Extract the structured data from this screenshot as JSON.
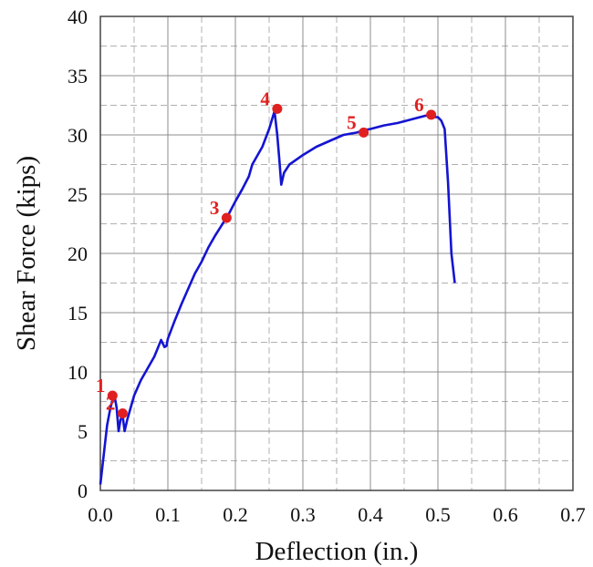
{
  "chart_data": {
    "type": "line",
    "xlabel": "Deflection  (in.)",
    "ylabel": "Shear Force  (kips)",
    "xlim": [
      0,
      0.7
    ],
    "ylim": [
      0,
      40
    ],
    "x_ticks": [
      0.0,
      0.1,
      0.2,
      0.3,
      0.4,
      0.5,
      0.6,
      0.7
    ],
    "x_tick_labels": [
      "0.0",
      "0.1",
      "0.2",
      "0.3",
      "0.4",
      "0.5",
      "0.6",
      "0.7"
    ],
    "y_ticks": [
      0,
      5,
      10,
      15,
      20,
      25,
      30,
      35,
      40
    ],
    "y_tick_labels": [
      "0",
      "5",
      "10",
      "15",
      "20",
      "25",
      "30",
      "35",
      "40"
    ],
    "grid": {
      "major": true,
      "minor": true
    },
    "line_color": "#1414d2",
    "marker_color": "#e02020",
    "series": [
      {
        "x": [
          0.0,
          0.002,
          0.005,
          0.01,
          0.015,
          0.018,
          0.021,
          0.024,
          0.027,
          0.03,
          0.033,
          0.036,
          0.04,
          0.045,
          0.05,
          0.06,
          0.07,
          0.08,
          0.09,
          0.095,
          0.098,
          0.1,
          0.11,
          0.12,
          0.13,
          0.14,
          0.15,
          0.16,
          0.17,
          0.18,
          0.19,
          0.2,
          0.21,
          0.22,
          0.225,
          0.23,
          0.24,
          0.25,
          0.258,
          0.262,
          0.265,
          0.268,
          0.272,
          0.28,
          0.3,
          0.32,
          0.34,
          0.36,
          0.38,
          0.39,
          0.4,
          0.42,
          0.44,
          0.46,
          0.48,
          0.49,
          0.495,
          0.5,
          0.505,
          0.51,
          0.515,
          0.52,
          0.525
        ],
        "y": [
          0.5,
          1.5,
          3.0,
          5.5,
          7.0,
          7.6,
          8.0,
          7.0,
          5.0,
          6.0,
          6.3,
          5.0,
          6.0,
          7.0,
          8.0,
          9.3,
          10.3,
          11.3,
          12.7,
          12.1,
          12.2,
          12.8,
          14.3,
          15.7,
          17.0,
          18.3,
          19.3,
          20.5,
          21.5,
          22.4,
          23.3,
          24.4,
          25.4,
          26.5,
          27.5,
          28.0,
          29.0,
          30.5,
          32.0,
          30.0,
          28.0,
          25.8,
          26.8,
          27.5,
          28.3,
          29.0,
          29.5,
          30.0,
          30.2,
          30.4,
          30.5,
          30.8,
          31.0,
          31.3,
          31.6,
          31.7,
          31.5,
          31.5,
          31.2,
          30.5,
          26.0,
          20.0,
          17.5
        ]
      }
    ],
    "points": [
      {
        "label": "1",
        "x": 0.018,
        "y": 8.0
      },
      {
        "label": "2",
        "x": 0.033,
        "y": 6.5
      },
      {
        "label": "3",
        "x": 0.187,
        "y": 23.0
      },
      {
        "label": "4",
        "x": 0.262,
        "y": 32.2
      },
      {
        "label": "5",
        "x": 0.39,
        "y": 30.2
      },
      {
        "label": "6",
        "x": 0.49,
        "y": 31.7
      }
    ]
  }
}
